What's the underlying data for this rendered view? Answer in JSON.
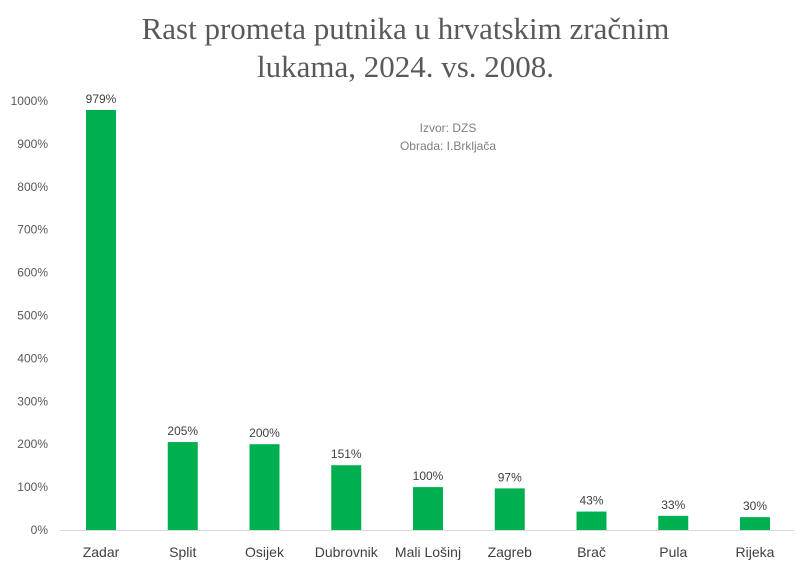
{
  "chart_data": {
    "type": "bar",
    "title": {
      "line1": "Rast prometa putnika u hrvatskim zračnim",
      "line2": "lukama, 2024. vs. 2008."
    },
    "categories": [
      "Zadar",
      "Split",
      "Osijek",
      "Dubrovnik",
      "Mali Lošinj",
      "Zagreb",
      "Brač",
      "Pula",
      "Rijeka"
    ],
    "values": [
      979,
      205,
      200,
      151,
      100,
      97,
      43,
      33,
      30
    ],
    "data_labels": [
      "979%",
      "205%",
      "200%",
      "151%",
      "100%",
      "97%",
      "43%",
      "33%",
      "30%"
    ],
    "ylim": [
      0,
      1000
    ],
    "y_ticks": [
      0,
      100,
      200,
      300,
      400,
      500,
      600,
      700,
      800,
      900,
      1000
    ],
    "y_tick_labels": [
      "0%",
      "100%",
      "200%",
      "300%",
      "400%",
      "500%",
      "600%",
      "700%",
      "800%",
      "900%",
      "1000%"
    ],
    "xlabel": "",
    "ylabel": "",
    "grid": false,
    "legend": "none",
    "bar_color": "#00b050",
    "annotation": {
      "source": "Izvor: DZS",
      "author": "Obrada: I.Brkljača"
    }
  }
}
